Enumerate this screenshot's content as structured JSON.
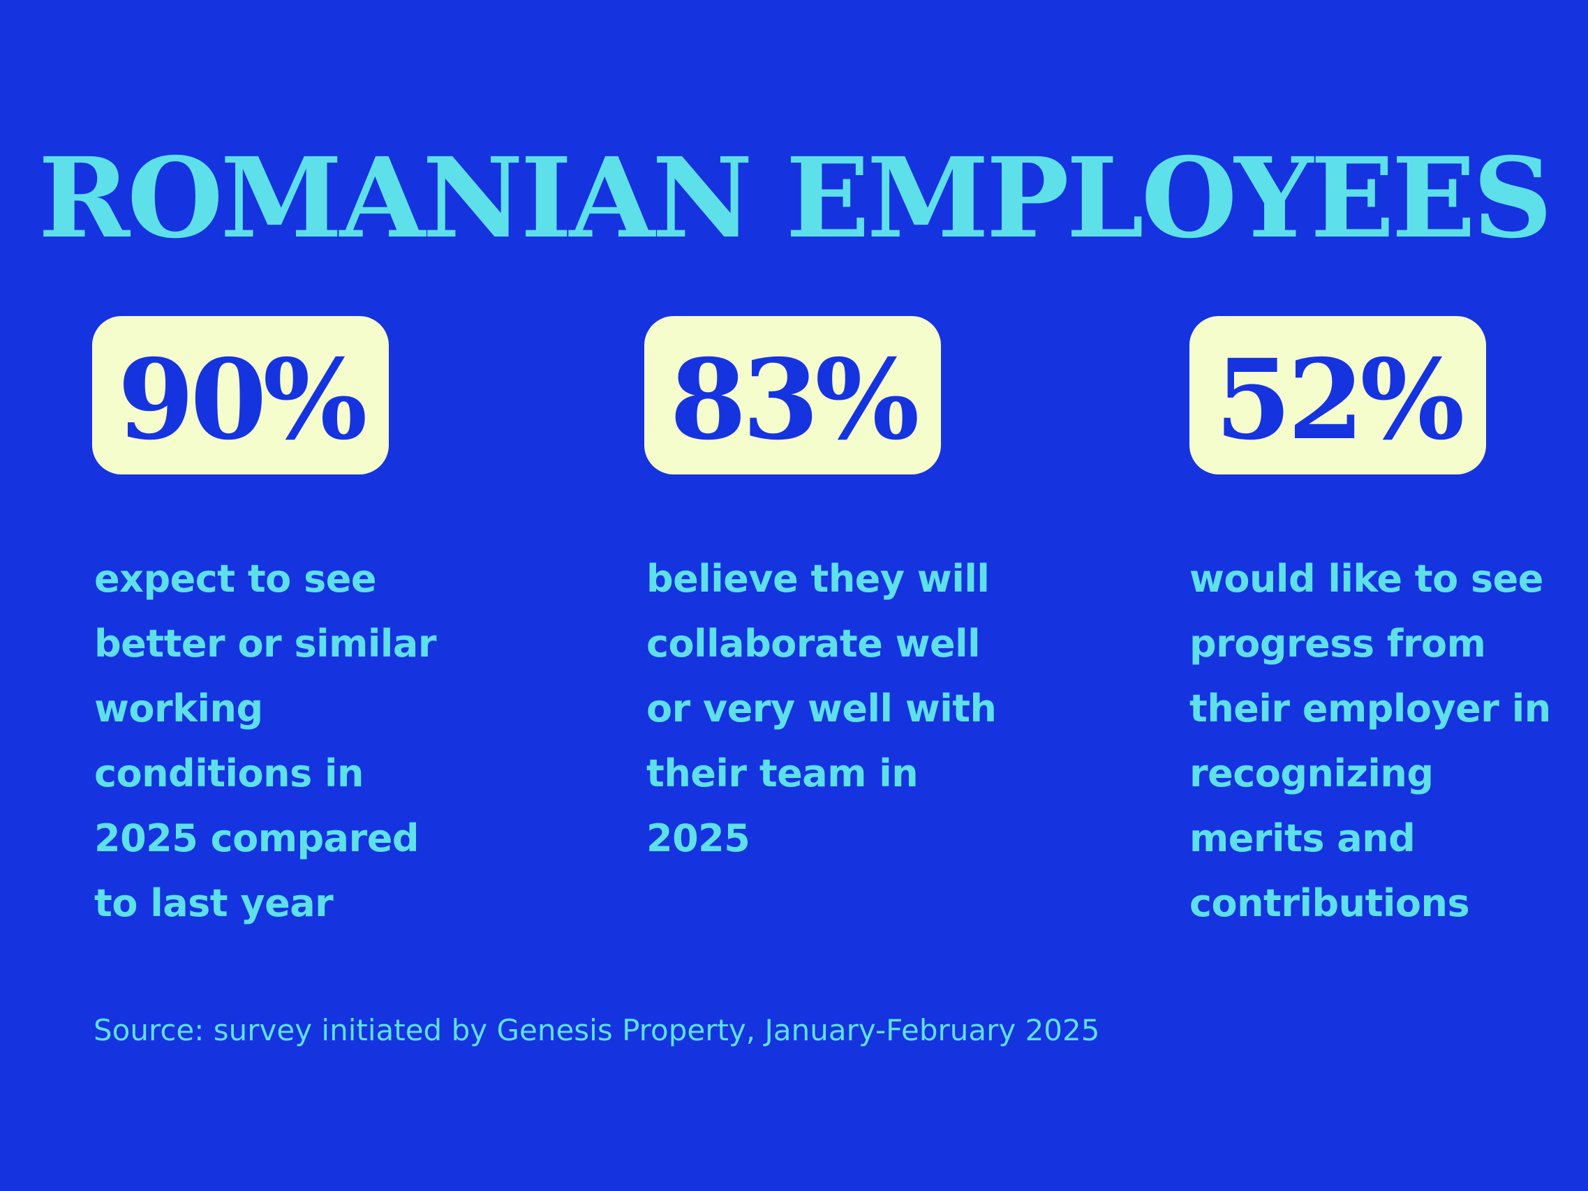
{
  "title": "ROMANIAN EMPLOYEES",
  "stats": [
    {
      "value": "90%",
      "description": "expect to see better or similar working conditions in 2025 compared to last year"
    },
    {
      "value": "83%",
      "description": "believe they will collaborate well or very well with their team in 2025"
    },
    {
      "value": "52%",
      "description": "would like to see progress from their employer in recognizing merits and contributions"
    }
  ],
  "source": "Source: survey initiated by Genesis Property, January-February 2025",
  "colors": {
    "background": "#1534e0",
    "accent_text": "#5ee0ea",
    "badge_background": "#f6fdcc",
    "badge_text": "#1534e0"
  }
}
